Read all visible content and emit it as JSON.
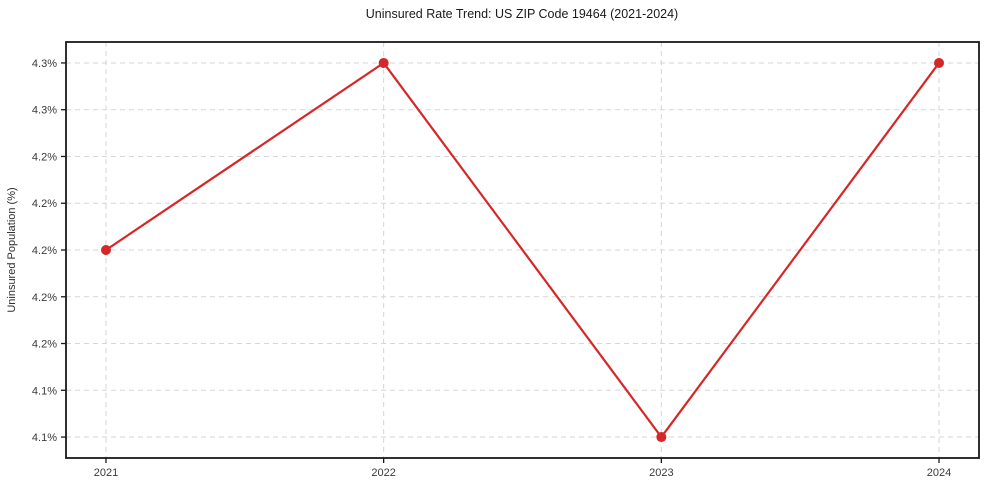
{
  "figure": {
    "background": "#ffffff"
  },
  "chart_data": {
    "type": "line",
    "title": "Uninsured Rate Trend: US ZIP Code 19464 (2021-2024)",
    "xlabel": "",
    "ylabel": "Uninsured Population (%)",
    "x": [
      2021,
      2022,
      2023,
      2024
    ],
    "x_tick_labels": [
      "2021",
      "2022",
      "2023",
      "2024"
    ],
    "values": [
      4.2,
      4.3,
      4.1,
      4.3
    ],
    "y_ticks": [
      {
        "value": 4.3,
        "label": "4.3%"
      },
      {
        "value": 4.275,
        "label": "4.3%"
      },
      {
        "value": 4.25,
        "label": "4.2%"
      },
      {
        "value": 4.225,
        "label": "4.2%"
      },
      {
        "value": 4.2,
        "label": "4.2%"
      },
      {
        "value": 4.175,
        "label": "4.2%"
      },
      {
        "value": 4.15,
        "label": "4.2%"
      },
      {
        "value": 4.125,
        "label": "4.1%"
      },
      {
        "value": 4.1,
        "label": "4.1%"
      }
    ],
    "xlim": [
      2020.856,
      2024.144
    ],
    "ylim": [
      4.0888,
      4.3112
    ],
    "line_color": "#d62728",
    "marker": "circle",
    "marker_radius": 5,
    "line_width": 2.2,
    "grid": {
      "visible": true,
      "style": "dashed",
      "color": "#d6d6d6"
    },
    "axes_color": "#1a1a1a",
    "tick_label_color": "#3a3a3a",
    "legend_position": "none"
  }
}
